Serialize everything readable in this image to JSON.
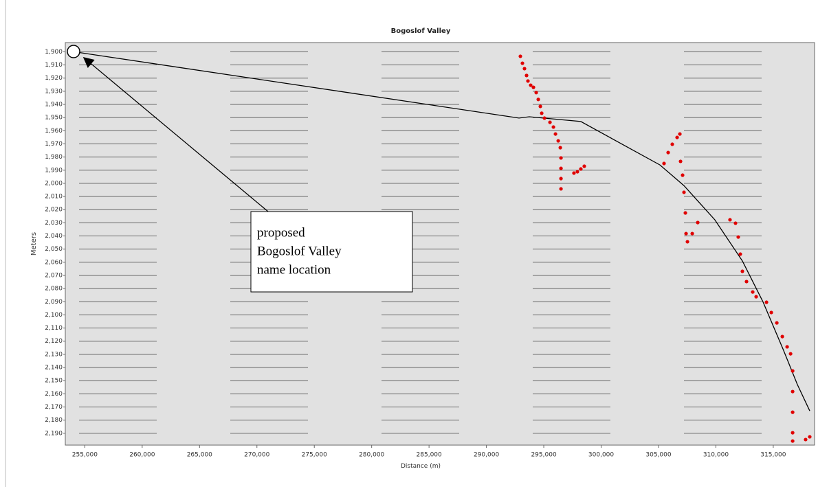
{
  "chart_data": {
    "type": "line",
    "title": "Bogoslof Valley",
    "xlabel": "Distance (m)",
    "ylabel": "Meters",
    "xlim": [
      253300,
      318600
    ],
    "ylim": [
      1893,
      2199
    ],
    "y_inverted": true,
    "grid": true,
    "xticks": [
      {
        "value": 255000,
        "label": "255,000"
      },
      {
        "value": 260000,
        "label": "260,000"
      },
      {
        "value": 265000,
        "label": "265,000"
      },
      {
        "value": 270000,
        "label": "270,000"
      },
      {
        "value": 275000,
        "label": "275,000"
      },
      {
        "value": 280000,
        "label": "280,000"
      },
      {
        "value": 285000,
        "label": "285,000"
      },
      {
        "value": 290000,
        "label": "290,000"
      },
      {
        "value": 295000,
        "label": "295,000"
      },
      {
        "value": 300000,
        "label": "300,000"
      },
      {
        "value": 305000,
        "label": "305,000"
      },
      {
        "value": 310000,
        "label": "310,000"
      },
      {
        "value": 315000,
        "label": "315,000"
      }
    ],
    "yticks": [
      {
        "value": 1900,
        "label": "1,900"
      },
      {
        "value": 1910,
        "label": "1,910"
      },
      {
        "value": 1920,
        "label": "1,920"
      },
      {
        "value": 1930,
        "label": "1,930"
      },
      {
        "value": 1940,
        "label": "1,940"
      },
      {
        "value": 1950,
        "label": "1,950"
      },
      {
        "value": 1960,
        "label": "1,960"
      },
      {
        "value": 1970,
        "label": "1,970"
      },
      {
        "value": 1980,
        "label": "1,980"
      },
      {
        "value": 1990,
        "label": "1,990"
      },
      {
        "value": 2000,
        "label": "2,000"
      },
      {
        "value": 2010,
        "label": "2,010"
      },
      {
        "value": 2020,
        "label": "2,020"
      },
      {
        "value": 2030,
        "label": "2,030"
      },
      {
        "value": 2040,
        "label": "2,040"
      },
      {
        "value": 2050,
        "label": "2,050"
      },
      {
        "value": 2060,
        "label": "2,060"
      },
      {
        "value": 2070,
        "label": "2,070"
      },
      {
        "value": 2080,
        "label": "2,080"
      },
      {
        "value": 2090,
        "label": "2,090"
      },
      {
        "value": 2100,
        "label": "2,100"
      },
      {
        "value": 2110,
        "label": "2,110"
      },
      {
        "value": 2120,
        "label": "2,120"
      },
      {
        "value": 2130,
        "label": "2,130"
      },
      {
        "value": 2140,
        "label": "2,140"
      },
      {
        "value": 2150,
        "label": "2,150"
      },
      {
        "value": 2160,
        "label": "2,160"
      },
      {
        "value": 2170,
        "label": "2,170"
      },
      {
        "value": 2180,
        "label": "2,180"
      },
      {
        "value": 2190,
        "label": "2,190"
      }
    ],
    "profile": {
      "color": "#000000",
      "x": [
        254080,
        292840,
        293740,
        298230,
        305120,
        307220,
        309910,
        312310,
        314100,
        315900,
        317100,
        318180
      ],
      "y": [
        1900,
        1950.4,
        1949.4,
        1953,
        1986,
        2001.7,
        2027.7,
        2059,
        2090,
        2127,
        2153,
        2173
      ]
    },
    "soundings": {
      "color": "#e00000",
      "x": [
        292960,
        293140,
        293320,
        293500,
        293620,
        293860,
        294100,
        294340,
        294520,
        294700,
        294820,
        295060,
        295540,
        295840,
        296020,
        296260,
        296440,
        296500,
        296500,
        296500,
        296500,
        297630,
        297930,
        298230,
        298530,
        305480,
        305840,
        306200,
        306620,
        306860,
        306920,
        307100,
        307220,
        307340,
        307400,
        307520,
        307940,
        308420,
        311230,
        311710,
        311950,
        312130,
        312310,
        312670,
        313210,
        313510,
        314410,
        314830,
        315310,
        315790,
        316210,
        316510,
        316690,
        316690,
        316690,
        316690,
        316690,
        317820,
        318180
      ],
      "y": [
        1903.4,
        1908.7,
        1912.8,
        1918,
        1922.2,
        1925.4,
        1927,
        1931,
        1936.2,
        1941.5,
        1946.7,
        1950.4,
        1953.6,
        1957.2,
        1962.5,
        1967.7,
        1972.9,
        1980.7,
        1988.6,
        1996.4,
        2004.2,
        1992.2,
        1991.2,
        1989.1,
        1987,
        1984.9,
        1976.6,
        1970.3,
        1965.1,
        1962.5,
        1983.3,
        1993.8,
        2006.8,
        2022.5,
        2038.2,
        2044.4,
        2038.2,
        2029.8,
        2027.7,
        2030.3,
        2040.8,
        2053.8,
        2066.9,
        2074.7,
        2082.6,
        2086.2,
        2090.4,
        2098.2,
        2106.1,
        2116.5,
        2124.3,
        2129.6,
        2142.6,
        2158.3,
        2174,
        2189.6,
        2195.9,
        2194.8,
        2192.7
      ]
    },
    "annotation": [
      "proposed",
      "Bogoslof Valley",
      "name location"
    ]
  }
}
